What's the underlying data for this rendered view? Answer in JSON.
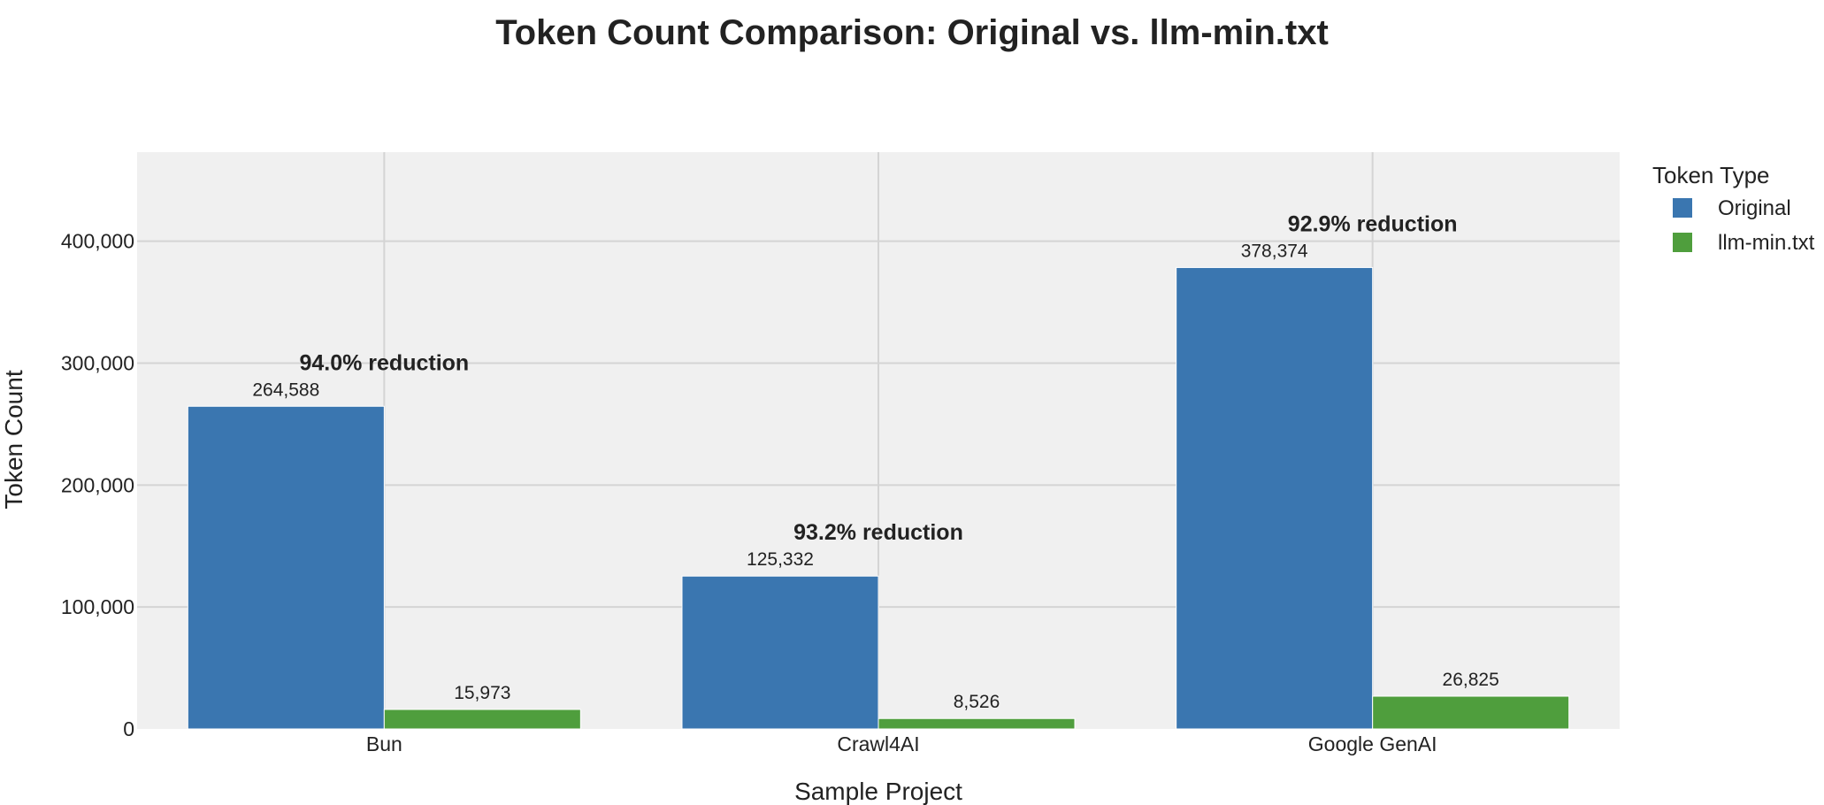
{
  "chart_data": {
    "type": "bar",
    "title": "Token Count Comparison: Original vs. llm-min.txt",
    "xlabel": "Sample Project",
    "ylabel": "Token Count",
    "categories": [
      "Bun",
      "Crawl4AI",
      "Google GenAI"
    ],
    "series": [
      {
        "name": "Original",
        "color": "#3a76b0",
        "values": [
          264588,
          125332,
          378374
        ],
        "labels": [
          "264,588",
          "125,332",
          "378,374"
        ]
      },
      {
        "name": "llm-min.txt",
        "color": "#4f9e3d",
        "values": [
          15973,
          8526,
          26825
        ],
        "labels": [
          "15,973",
          "8,526",
          "26,825"
        ]
      }
    ],
    "annotations": [
      "94.0% reduction",
      "93.2% reduction",
      "92.9% reduction"
    ],
    "ylim": [
      0,
      473000
    ],
    "yticks": [
      0,
      100000,
      200000,
      300000,
      400000
    ],
    "ytick_labels": [
      "0",
      "100,000",
      "200,000",
      "300,000",
      "400,000"
    ],
    "grid": true,
    "legend": {
      "title": "Token Type",
      "placement": "top-right"
    },
    "colors": {
      "plot_background": "#f0f0f0",
      "grid": "#d4d4d4"
    }
  }
}
